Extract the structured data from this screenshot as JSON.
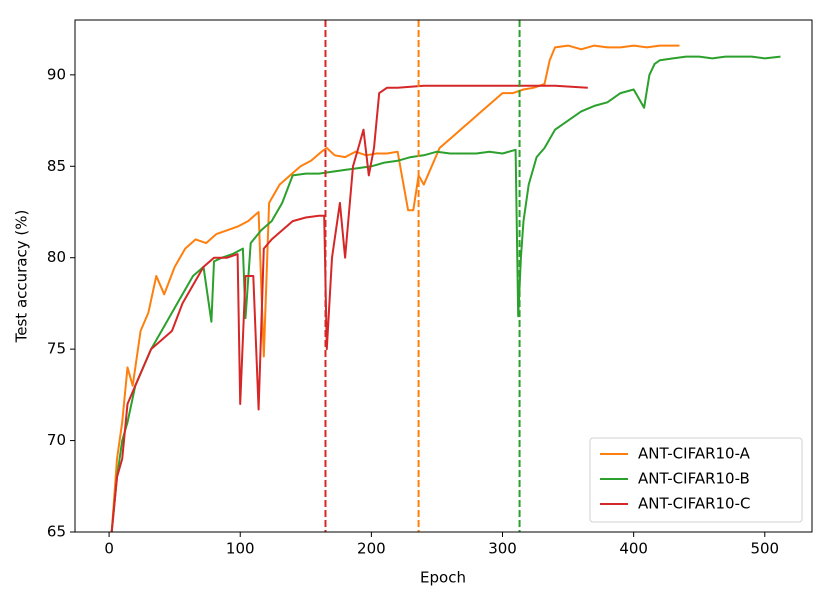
{
  "chart_data": {
    "type": "line",
    "xlabel": "Epoch",
    "ylabel": "Test accuracy (%)",
    "xlim": [
      -26,
      536
    ],
    "ylim": [
      65,
      93
    ],
    "xticks": [
      0,
      100,
      200,
      300,
      400,
      500
    ],
    "yticks": [
      65,
      70,
      75,
      80,
      85,
      90
    ],
    "legend": "lower right",
    "series": [
      {
        "name": "ANT-CIFAR10-A",
        "color": "#ff7f0e",
        "x": [
          2,
          6,
          10,
          14,
          18,
          24,
          30,
          36,
          42,
          50,
          58,
          66,
          74,
          82,
          90,
          98,
          106,
          114,
          118,
          122,
          130,
          138,
          146,
          154,
          162,
          166,
          172,
          180,
          188,
          196,
          204,
          212,
          220,
          228,
          232,
          236,
          240,
          246,
          252,
          260,
          268,
          276,
          284,
          292,
          300,
          308,
          316,
          324,
          332,
          336,
          340,
          350,
          360,
          370,
          380,
          390,
          400,
          410,
          420,
          435
        ],
        "values": [
          65,
          69,
          71,
          74,
          73,
          76,
          77,
          79,
          78,
          79.5,
          80.5,
          81,
          80.8,
          81.3,
          81.5,
          81.7,
          82,
          82.5,
          74.6,
          83,
          84,
          84.5,
          85,
          85.3,
          85.8,
          86,
          85.6,
          85.5,
          85.8,
          85.6,
          85.7,
          85.7,
          85.8,
          82.6,
          82.6,
          84.5,
          84,
          85,
          86,
          86.5,
          87,
          87.5,
          88,
          88.5,
          89,
          89,
          89.2,
          89.3,
          89.5,
          90.8,
          91.5,
          91.6,
          91.4,
          91.6,
          91.5,
          91.5,
          91.6,
          91.5,
          91.6,
          91.6
        ]
      },
      {
        "name": "ANT-CIFAR10-B",
        "color": "#2ca02c",
        "x": [
          2,
          6,
          10,
          14,
          20,
          26,
          32,
          40,
          48,
          56,
          64,
          72,
          78,
          80,
          86,
          94,
          102,
          104,
          108,
          116,
          124,
          132,
          140,
          150,
          160,
          170,
          180,
          190,
          200,
          210,
          220,
          230,
          240,
          250,
          260,
          270,
          280,
          290,
          300,
          310,
          312,
          314,
          316,
          320,
          326,
          332,
          340,
          350,
          360,
          370,
          380,
          390,
          400,
          408,
          412,
          416,
          420,
          430,
          440,
          450,
          460,
          470,
          480,
          490,
          500,
          512
        ],
        "values": [
          65,
          68,
          70,
          71,
          73,
          74,
          75,
          76,
          77,
          78,
          79,
          79.5,
          76.5,
          79.8,
          80,
          80.2,
          80.5,
          76.7,
          80.8,
          81.5,
          82,
          83,
          84.5,
          84.6,
          84.6,
          84.7,
          84.8,
          84.9,
          85,
          85.2,
          85.3,
          85.5,
          85.6,
          85.8,
          85.7,
          85.7,
          85.7,
          85.8,
          85.7,
          85.9,
          76.8,
          80,
          82,
          84,
          85.5,
          86,
          87,
          87.5,
          88,
          88.3,
          88.5,
          89,
          89.2,
          88.2,
          90,
          90.6,
          90.8,
          90.9,
          91,
          91,
          90.9,
          91,
          91,
          91,
          90.9,
          91
        ]
      },
      {
        "name": "ANT-CIFAR10-C",
        "color": "#d62728",
        "x": [
          2,
          6,
          10,
          14,
          20,
          26,
          32,
          40,
          48,
          56,
          64,
          72,
          80,
          90,
          98,
          100,
          104,
          110,
          114,
          118,
          124,
          132,
          140,
          150,
          160,
          164,
          166,
          170,
          176,
          180,
          186,
          190,
          194,
          198,
          202,
          206,
          212,
          220,
          240,
          260,
          280,
          300,
          320,
          340,
          365
        ],
        "values": [
          65,
          68,
          69,
          72,
          73,
          74,
          75,
          75.5,
          76,
          77.5,
          78.5,
          79.5,
          80,
          80,
          80.2,
          72,
          79,
          79,
          71.7,
          80.5,
          81,
          81.5,
          82,
          82.2,
          82.3,
          82.3,
          75,
          80,
          83,
          80,
          85,
          86,
          87,
          84.5,
          86,
          89,
          89.3,
          89.3,
          89.4,
          89.4,
          89.4,
          89.4,
          89.4,
          89.4,
          89.3
        ]
      }
    ],
    "vlines": [
      {
        "x": 165,
        "color": "#d62728"
      },
      {
        "x": 236,
        "color": "#ff7f0e"
      },
      {
        "x": 313,
        "color": "#2ca02c"
      }
    ]
  }
}
